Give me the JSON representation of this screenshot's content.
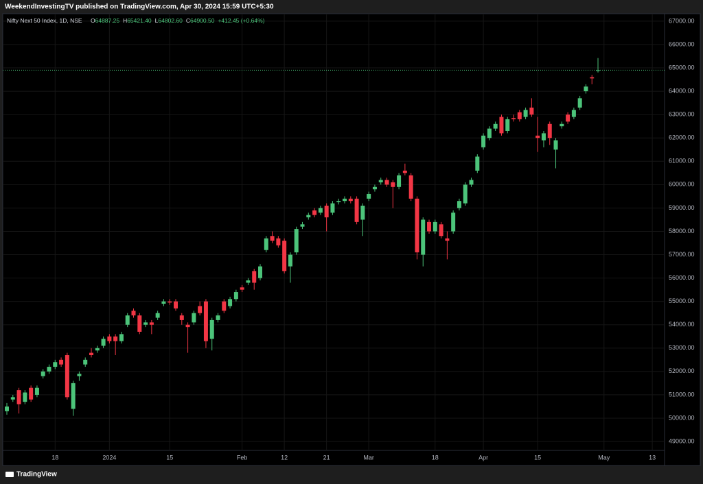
{
  "header": {
    "title": "WeekendInvestingTV published on TradingView.com, Apr 30, 2024 15:59 UTC+5:30"
  },
  "footer": {
    "brand": "TradingView"
  },
  "chart_data": {
    "type": "candlestick",
    "title": "Nifty Next 50 Index, 1D, NSE",
    "legend_items": [
      {
        "label": "O",
        "value": "64887.25"
      },
      {
        "label": "H",
        "value": "65421.40"
      },
      {
        "label": "L",
        "value": "64802.60"
      },
      {
        "label": "C",
        "value": "64900.50"
      }
    ],
    "change": "+412.45 (+0.64%)",
    "up_color": "#4cc47a",
    "down_color": "#f23645",
    "grid": true,
    "categories": [
      null,
      null,
      null,
      null,
      null,
      null,
      null,
      null,
      "18",
      null,
      null,
      null,
      null,
      null,
      null,
      null,
      null,
      "2024",
      null,
      null,
      null,
      null,
      null,
      null,
      null,
      null,
      null,
      "15",
      null,
      null,
      null,
      null,
      null,
      null,
      null,
      null,
      null,
      null,
      null,
      "Feb",
      null,
      null,
      null,
      null,
      null,
      null,
      "12",
      null,
      null,
      null,
      null,
      null,
      null,
      "21",
      null,
      null,
      null,
      null,
      null,
      null,
      "Mar",
      null,
      null,
      null,
      null,
      null,
      null,
      null,
      null,
      null,
      null,
      "18",
      null,
      null,
      null,
      null,
      null,
      null,
      null,
      "Apr",
      null,
      null,
      null,
      null,
      null,
      null,
      null,
      null,
      "15",
      null,
      null,
      null,
      null,
      null,
      null,
      null,
      null,
      null,
      null,
      "May",
      null,
      null,
      null,
      null,
      null,
      null,
      null,
      "13",
      null,
      null
    ],
    "open": [
      50300,
      50800,
      51200,
      50700,
      51300,
      51000,
      51800,
      52000,
      52200,
      52500,
      52700,
      50400,
      51800,
      52300,
      52800,
      52900,
      53100,
      53500,
      53500,
      53300,
      54000,
      54600,
      54400,
      54000,
      54100,
      54300,
      54900,
      55000,
      55000,
      54400,
      54000,
      54100,
      54800,
      55000,
      53400,
      54200,
      55000,
      54800,
      55100,
      55600,
      55800,
      56300,
      56000,
      57200,
      57800,
      57700,
      57600,
      56500,
      57100,
      58200,
      58600,
      58900,
      58800,
      59100,
      58800,
      59250,
      59300,
      59400,
      59400,
      58500,
      59400,
      59800,
      60100,
      60200,
      60100,
      59900,
      60600,
      60400,
      59400,
      57000,
      58400,
      58000,
      58300,
      57700,
      58000,
      59000,
      59200,
      60000,
      60600,
      61600,
      62000,
      62400,
      62900,
      62300,
      62850,
      63100,
      62900,
      63300,
      62100,
      61900,
      62600,
      61500,
      62500,
      63000,
      62900,
      63300,
      64000,
      64600,
      64887.25,
      null,
      null,
      null,
      null,
      null,
      null,
      null,
      null,
      null,
      null,
      null
    ],
    "high": [
      50650,
      51000,
      51300,
      51200,
      51400,
      51400,
      52100,
      52300,
      52500,
      52600,
      52800,
      51600,
      52000,
      52600,
      53000,
      53100,
      53500,
      53600,
      53600,
      53700,
      54500,
      54700,
      54500,
      54200,
      54200,
      54600,
      55100,
      55100,
      55100,
      54500,
      54100,
      54600,
      55000,
      55100,
      54300,
      54500,
      55100,
      55200,
      55500,
      55700,
      56000,
      56400,
      56600,
      57800,
      58000,
      57800,
      57700,
      57100,
      58200,
      58400,
      58800,
      59000,
      59100,
      59200,
      59300,
      59400,
      59500,
      59500,
      59500,
      59200,
      59700,
      60000,
      60300,
      60300,
      60200,
      60500,
      60900,
      60500,
      59500,
      58600,
      58500,
      58500,
      58400,
      58000,
      58900,
      59400,
      60100,
      60300,
      61300,
      62200,
      62500,
      62700,
      63000,
      62900,
      63000,
      63200,
      63300,
      63700,
      62900,
      62300,
      62700,
      62000,
      62700,
      63100,
      63300,
      63800,
      64300,
      64700,
      65421.4,
      null,
      null,
      null,
      null,
      null,
      null,
      null,
      null,
      null,
      null,
      null
    ],
    "low": [
      50150,
      50700,
      50200,
      50600,
      50700,
      50900,
      51700,
      51900,
      52100,
      52200,
      50800,
      50100,
      51600,
      52200,
      52600,
      52800,
      53000,
      53200,
      52700,
      53200,
      53900,
      54300,
      53600,
      53900,
      53600,
      54200,
      54800,
      54850,
      54600,
      54000,
      52800,
      54000,
      54400,
      53000,
      52900,
      54100,
      54500,
      54700,
      55000,
      55400,
      55700,
      55500,
      55900,
      57100,
      57500,
      57300,
      56200,
      55800,
      57000,
      58100,
      58500,
      58600,
      58700,
      58000,
      58700,
      59150,
      59200,
      59200,
      58300,
      57800,
      59300,
      59700,
      60000,
      59900,
      59000,
      59800,
      60400,
      59300,
      56800,
      56500,
      57900,
      57900,
      57700,
      56800,
      57900,
      58900,
      59100,
      59900,
      60500,
      61500,
      61900,
      62300,
      62100,
      62200,
      62700,
      62700,
      62800,
      62900,
      61400,
      61600,
      61700,
      60700,
      62400,
      62600,
      62800,
      63200,
      63900,
      64300,
      64802.6,
      null,
      null,
      null,
      null,
      null,
      null,
      null,
      null,
      null,
      null,
      null
    ],
    "close": [
      50500,
      50900,
      50600,
      51100,
      50800,
      51300,
      52000,
      52200,
      52400,
      52300,
      50900,
      51500,
      51900,
      52500,
      52700,
      53000,
      53400,
      53300,
      53300,
      53600,
      54400,
      54400,
      53700,
      54100,
      54000,
      54500,
      55000,
      54950,
      54700,
      54200,
      53900,
      54500,
      54500,
      53300,
      54200,
      54400,
      54600,
      55100,
      55400,
      55500,
      55900,
      55800,
      56500,
      57700,
      57600,
      57400,
      56300,
      57000,
      58100,
      58300,
      58700,
      58700,
      59000,
      58600,
      59200,
      59300,
      59400,
      59300,
      58400,
      59100,
      59600,
      59900,
      60200,
      60000,
      59900,
      60400,
      60500,
      59400,
      57100,
      58500,
      58000,
      58400,
      57800,
      57600,
      58800,
      59300,
      60000,
      60200,
      61200,
      62100,
      62400,
      62600,
      62200,
      62800,
      62800,
      62800,
      63200,
      63000,
      62000,
      62200,
      62000,
      61900,
      62600,
      62700,
      63200,
      63700,
      64200,
      64550,
      64900.5,
      null,
      null,
      null,
      null,
      null,
      null,
      null,
      null,
      null,
      null,
      null
    ],
    "ylim": [
      48620,
      67320
    ],
    "yticks": [
      {
        "value": 49000,
        "label": "49000.00"
      },
      {
        "value": 50000,
        "label": "50000.00"
      },
      {
        "value": 51000,
        "label": "51000.00"
      },
      {
        "value": 52000,
        "label": "52000.00"
      },
      {
        "value": 53000,
        "label": "53000.00"
      },
      {
        "value": 54000,
        "label": "54000.00"
      },
      {
        "value": 55000,
        "label": "55000.00"
      },
      {
        "value": 56000,
        "label": "56000.00"
      },
      {
        "value": 57000,
        "label": "57000.00"
      },
      {
        "value": 58000,
        "label": "58000.00"
      },
      {
        "value": 59000,
        "label": "59000.00"
      },
      {
        "value": 60000,
        "label": "60000.00"
      },
      {
        "value": 61000,
        "label": "61000.00"
      },
      {
        "value": 62000,
        "label": "62000.00"
      },
      {
        "value": 63000,
        "label": "63000.00"
      },
      {
        "value": 64000,
        "label": "64000.00"
      },
      {
        "value": 65000,
        "label": "65000.00"
      },
      {
        "value": 66000,
        "label": "66000.00"
      },
      {
        "value": 67000,
        "label": "67000.00"
      }
    ]
  }
}
